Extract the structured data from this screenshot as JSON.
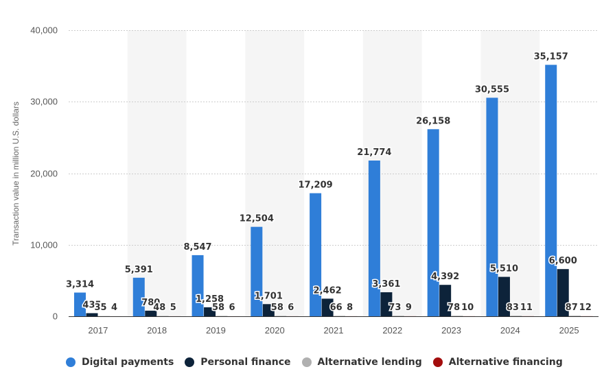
{
  "chart_data": {
    "type": "bar",
    "title": "",
    "xlabel": "",
    "ylabel": "Transaction value in million U.S. dollars",
    "ylim": [
      0,
      40000
    ],
    "yticks": [
      0,
      10000,
      20000,
      30000,
      40000
    ],
    "ytick_labels": [
      "0",
      "10,000",
      "20,000",
      "30,000",
      "40,000"
    ],
    "categories": [
      "2017",
      "2018",
      "2019",
      "2020",
      "2021",
      "2022",
      "2023",
      "2024",
      "2025"
    ],
    "series": [
      {
        "name": "Digital payments",
        "color": "#2f7ed8",
        "values": [
          3314,
          5391,
          8547,
          12504,
          17209,
          21774,
          26158,
          30555,
          35157
        ],
        "labels": [
          "3,314",
          "5,391",
          "8,547",
          "12,504",
          "17,209",
          "21,774",
          "26,158",
          "30,555",
          "35,157"
        ]
      },
      {
        "name": "Personal finance",
        "color": "#0d233a",
        "values": [
          435,
          780,
          1258,
          1701,
          2462,
          3361,
          4392,
          5510,
          6600
        ],
        "labels": [
          "435",
          "780",
          "1,258",
          "1,701",
          "2,462",
          "3,361",
          "4,392",
          "5,510",
          "6,600"
        ]
      },
      {
        "name": "Alternative lending",
        "color": "#b0b0b0",
        "values": [
          35,
          48,
          58,
          58,
          66,
          73,
          78,
          83,
          87
        ],
        "labels": [
          "35",
          "48",
          "58",
          "58",
          "66",
          "73",
          "78",
          "83",
          "87"
        ]
      },
      {
        "name": "Alternative financing",
        "color": "#a30d0d",
        "values": [
          4,
          5,
          6,
          6,
          8,
          9,
          10,
          11,
          12
        ],
        "labels": [
          "4",
          "5",
          "6",
          "6",
          "8",
          "9",
          "10",
          "11",
          "12"
        ]
      }
    ],
    "grid": true,
    "legend_position": "bottom-left",
    "alternating_bands": true
  }
}
